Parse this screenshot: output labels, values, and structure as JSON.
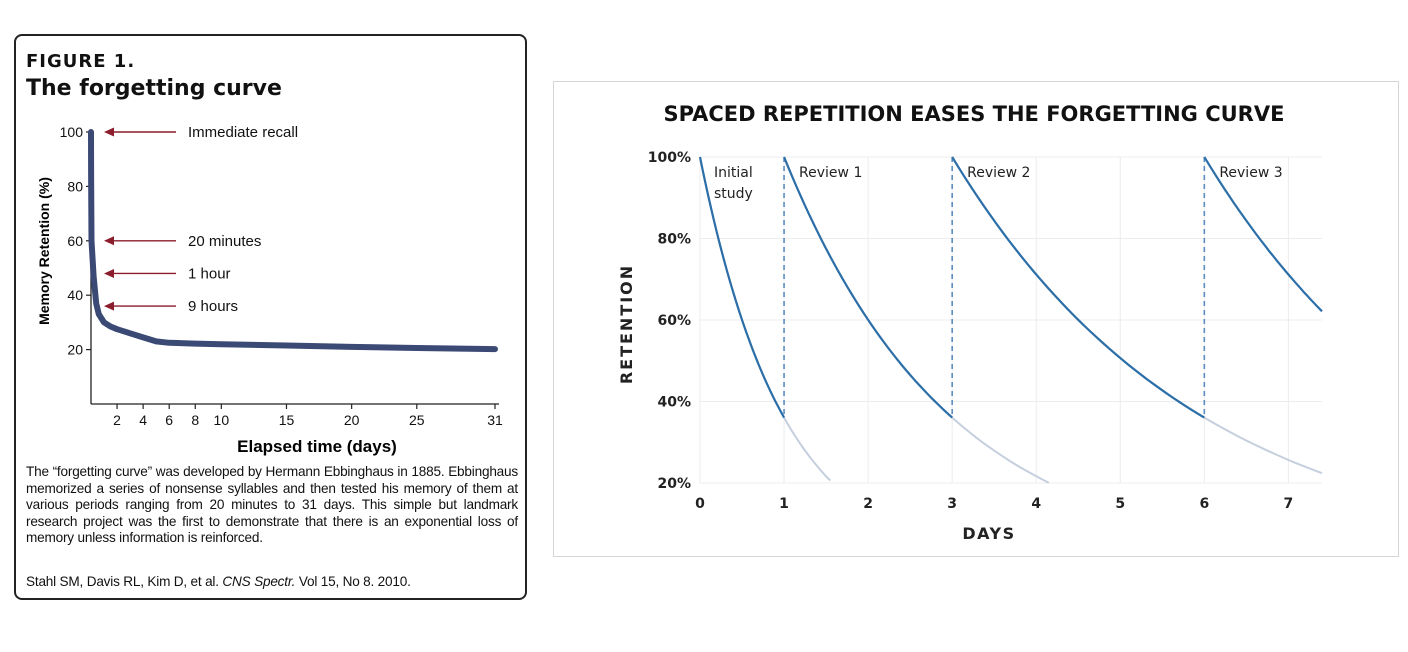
{
  "chart_data": [
    {
      "type": "line",
      "label": "FIGURE 1.",
      "title": "The forgetting curve",
      "xlabel": "Elapsed time (days)",
      "ylabel": "Memory Retention (%)",
      "xlim": [
        0,
        31
      ],
      "ylim": [
        0,
        100
      ],
      "x_ticks": [
        2,
        4,
        6,
        8,
        10,
        15,
        20,
        25,
        31
      ],
      "y_ticks": [
        20,
        40,
        60,
        80,
        100
      ],
      "color": "#3b4a75",
      "series": [
        {
          "x": [
            0,
            0.01,
            0.04,
            0.2,
            0.4,
            0.6,
            1,
            1.5,
            2,
            3,
            4,
            5,
            6,
            8,
            10,
            15,
            20,
            25,
            31
          ],
          "y": [
            100,
            85,
            60,
            47,
            37,
            33,
            30,
            28.5,
            27.5,
            26,
            24.5,
            23,
            22.5,
            22.2,
            22,
            21.5,
            21,
            20.6,
            20.2
          ]
        }
      ],
      "annotations": [
        {
          "text": "Immediate recall",
          "y": 100
        },
        {
          "text": "20 minutes",
          "y": 60
        },
        {
          "text": "1 hour",
          "y": 48
        },
        {
          "text": "9 hours",
          "y": 36
        }
      ],
      "annotation_color": "#8b1d2c",
      "caption": "The “forgetting curve” was developed by Hermann Ebbinghaus in 1885. Ebbinghaus memorized a series of nonsense syllables and then tested his memory of them at various periods ranging from 20 minutes to 31 days. This simple but landmark research project was the first to demonstrate that there is an exponential loss of memory unless information is reinforced.",
      "citation": {
        "authors": "Stahl SM, Davis RL, Kim D, et al.",
        "journal": "CNS Spectr.",
        "details": "Vol 15, No 8. 2010."
      }
    },
    {
      "type": "line",
      "title": "SPACED REPETITION EASES THE FORGETTING CURVE",
      "xlabel": "DAYS",
      "ylabel": "RETENTION",
      "xlim": [
        0,
        7.4
      ],
      "ylim": [
        20,
        100
      ],
      "x_ticks": [
        0,
        1,
        2,
        3,
        4,
        5,
        6,
        7
      ],
      "y_ticks": [
        "20%",
        "40%",
        "60%",
        "80%",
        "100%"
      ],
      "grid": true,
      "colors": {
        "curve": "#2c6fa8",
        "faded": "#c5cfdd",
        "review_line": "#5a8cc0"
      },
      "reviews": [
        {
          "name": "Review 1",
          "day": 1
        },
        {
          "name": "Review 2",
          "day": 3
        },
        {
          "name": "Review 3",
          "day": 6
        }
      ],
      "start_label": "Initial study",
      "series": [
        {
          "name": "Initial study",
          "start": 0,
          "solid_end": 1,
          "faded_end": 1.55
        },
        {
          "name": "Review 1",
          "start": 1,
          "solid_end": 3,
          "faded_end": 4.15
        },
        {
          "name": "Review 2",
          "start": 3,
          "solid_end": 6,
          "faded_end": 7.4
        },
        {
          "name": "Review 3",
          "start": 6,
          "solid_end": 7.4,
          "faded_end": 7.4
        }
      ]
    }
  ]
}
